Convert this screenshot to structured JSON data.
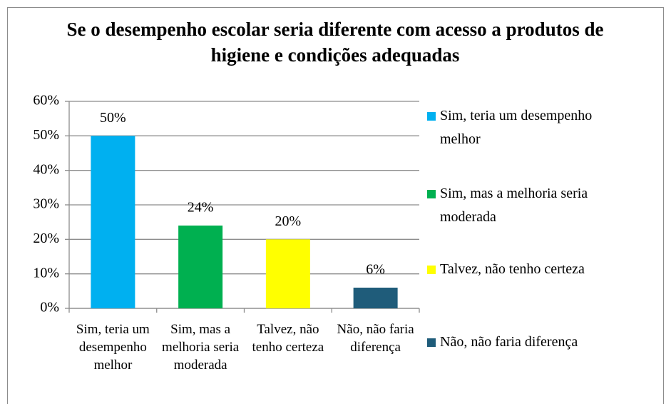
{
  "chart_data": {
    "type": "bar",
    "title": "Se o desempenho escolar seria diferente com acesso a produtos de higiene e condições adequadas",
    "categories": [
      "Sim, teria um desempenho melhor",
      "Sim, mas a melhoria seria moderada",
      "Talvez, não tenho certeza",
      "Não, não faria diferença"
    ],
    "values": [
      50,
      24,
      20,
      6
    ],
    "value_labels": [
      "50%",
      "24%",
      "20%",
      "6%"
    ],
    "colors": [
      "#00b0f0",
      "#00b050",
      "#ffff00",
      "#1f5c7a"
    ],
    "ylim": [
      0,
      60
    ],
    "yticks": [
      {
        "value": 0,
        "label": "0%"
      },
      {
        "value": 10,
        "label": "10%"
      },
      {
        "value": 20,
        "label": "20%"
      },
      {
        "value": 30,
        "label": "30%"
      },
      {
        "value": 40,
        "label": "40%"
      },
      {
        "value": 50,
        "label": "50%"
      },
      {
        "value": 60,
        "label": "60%"
      }
    ],
    "grid": true,
    "legend": "right"
  }
}
